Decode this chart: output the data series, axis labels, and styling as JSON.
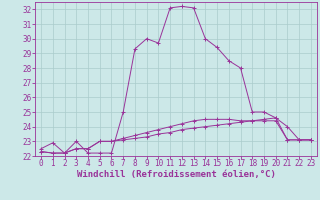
{
  "xlabel": "Windchill (Refroidissement éolien,°C)",
  "background_color": "#cce8e8",
  "grid_color": "#aacccc",
  "line_color": "#993399",
  "xlim": [
    -0.5,
    23.5
  ],
  "ylim": [
    22,
    32.5
  ],
  "yticks": [
    22,
    23,
    24,
    25,
    26,
    27,
    28,
    29,
    30,
    31,
    32
  ],
  "xticks": [
    0,
    1,
    2,
    3,
    4,
    5,
    6,
    7,
    8,
    9,
    10,
    11,
    12,
    13,
    14,
    15,
    16,
    17,
    18,
    19,
    20,
    21,
    22,
    23
  ],
  "series1_x": [
    0,
    1,
    2,
    3,
    4,
    5,
    6,
    7,
    8,
    9,
    10,
    11,
    12,
    13,
    14,
    15,
    16,
    17,
    18,
    19,
    20,
    21,
    22,
    23
  ],
  "series1_y": [
    22.5,
    22.9,
    22.2,
    23.0,
    22.2,
    22.2,
    22.2,
    25.0,
    29.3,
    30.0,
    29.7,
    32.1,
    32.2,
    32.1,
    30.0,
    29.4,
    28.5,
    28.0,
    25.0,
    25.0,
    24.6,
    24.0,
    23.1,
    23.1
  ],
  "series2_x": [
    0,
    1,
    2,
    3,
    4,
    5,
    6,
    7,
    8,
    9,
    10,
    11,
    12,
    13,
    14,
    15,
    16,
    17,
    18,
    19,
    20,
    21,
    22,
    23
  ],
  "series2_y": [
    22.3,
    22.2,
    22.2,
    22.5,
    22.5,
    23.0,
    23.0,
    23.2,
    23.4,
    23.6,
    23.8,
    24.0,
    24.2,
    24.4,
    24.5,
    24.5,
    24.5,
    24.4,
    24.4,
    24.4,
    24.4,
    23.1,
    23.1,
    23.1
  ],
  "series3_x": [
    0,
    1,
    2,
    3,
    4,
    5,
    6,
    7,
    8,
    9,
    10,
    11,
    12,
    13,
    14,
    15,
    16,
    17,
    18,
    19,
    20,
    21,
    22,
    23
  ],
  "series3_y": [
    22.3,
    22.2,
    22.2,
    22.5,
    22.5,
    23.0,
    23.0,
    23.1,
    23.2,
    23.3,
    23.5,
    23.6,
    23.8,
    23.9,
    24.0,
    24.1,
    24.2,
    24.3,
    24.4,
    24.5,
    24.6,
    23.1,
    23.1,
    23.1
  ],
  "font_size_label": 6.5,
  "font_size_tick": 5.5,
  "marker": "+"
}
